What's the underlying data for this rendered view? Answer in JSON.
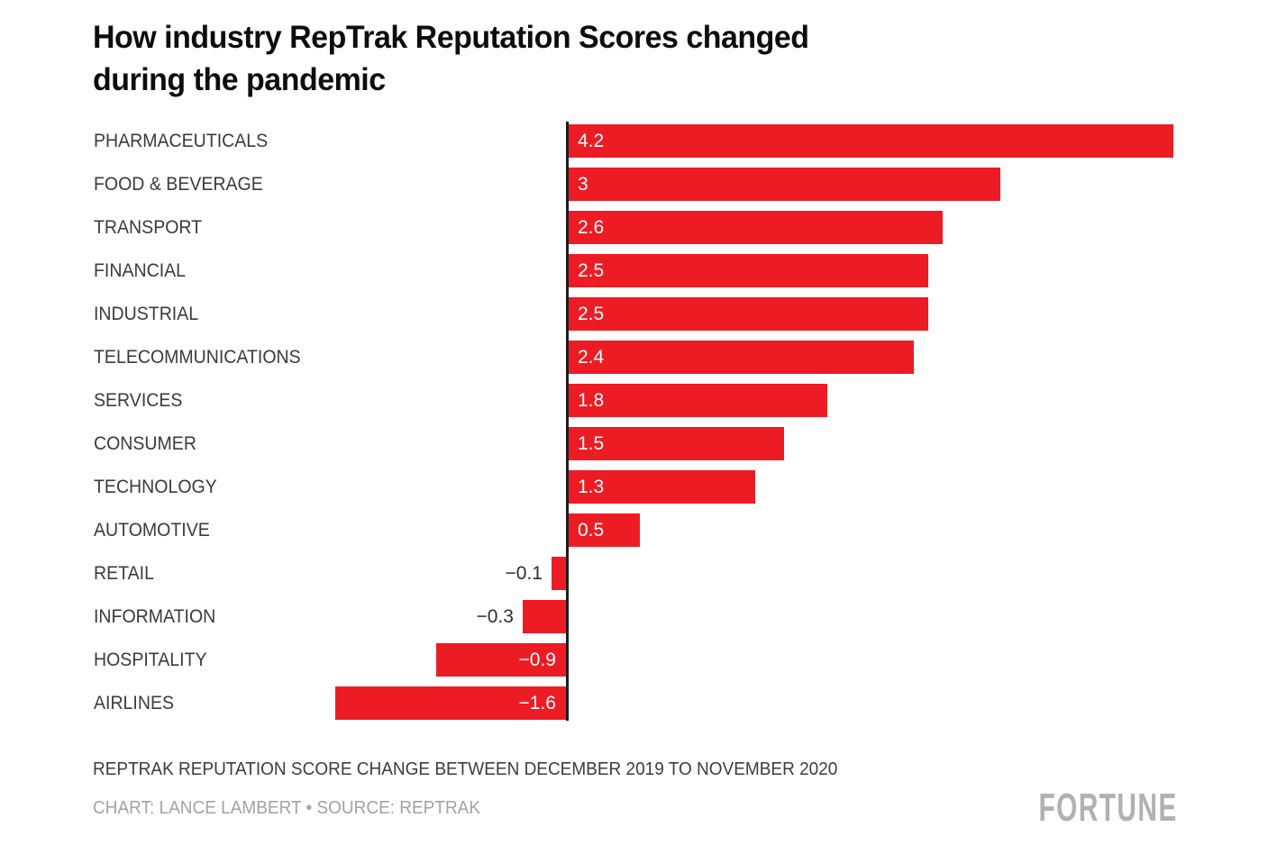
{
  "header": {
    "title": "How industry RepTrak Reputation Scores changed during the pandemic",
    "title_lines": [
      "How industry RepTrak Reputation Scores changed",
      "during the pandemic"
    ]
  },
  "chart_data": {
    "type": "bar",
    "orientation": "horizontal",
    "title": "How industry RepTrak Reputation Scores changed during the pandemic",
    "categories": [
      "PHARMACEUTICALS",
      "FOOD & BEVERAGE",
      "TRANSPORT",
      "FINANCIAL",
      "INDUSTRIAL",
      "TELECOMMUNICATIONS",
      "SERVICES",
      "CONSUMER",
      "TECHNOLOGY",
      "AUTOMOTIVE",
      "RETAIL",
      "INFORMATION",
      "HOSPITALITY",
      "AIRLINES"
    ],
    "values": [
      4.2,
      3,
      2.6,
      2.5,
      2.5,
      2.4,
      1.8,
      1.5,
      1.3,
      0.5,
      -0.1,
      -0.3,
      -0.9,
      -1.6
    ],
    "value_labels": [
      "4.2",
      "3",
      "2.6",
      "2.5",
      "2.5",
      "2.4",
      "1.8",
      "1.5",
      "1.3",
      "0.5",
      "−0.1",
      "−0.3",
      "−0.9",
      "−1.6"
    ],
    "xlim": [
      -1.6,
      4.2
    ],
    "grid": false,
    "legend": false,
    "bar_color": "#ED1C24",
    "axis_color": "#1c1c1c",
    "xlabel": "",
    "ylabel": ""
  },
  "footer": {
    "note": "REPTRAK REPUTATION SCORE CHANGE BETWEEN DECEMBER 2019 TO NOVEMBER 2020",
    "credit": "CHART: LANCE LAMBERT • SOURCE: REPTRAK",
    "logo": "FORTUNE"
  }
}
